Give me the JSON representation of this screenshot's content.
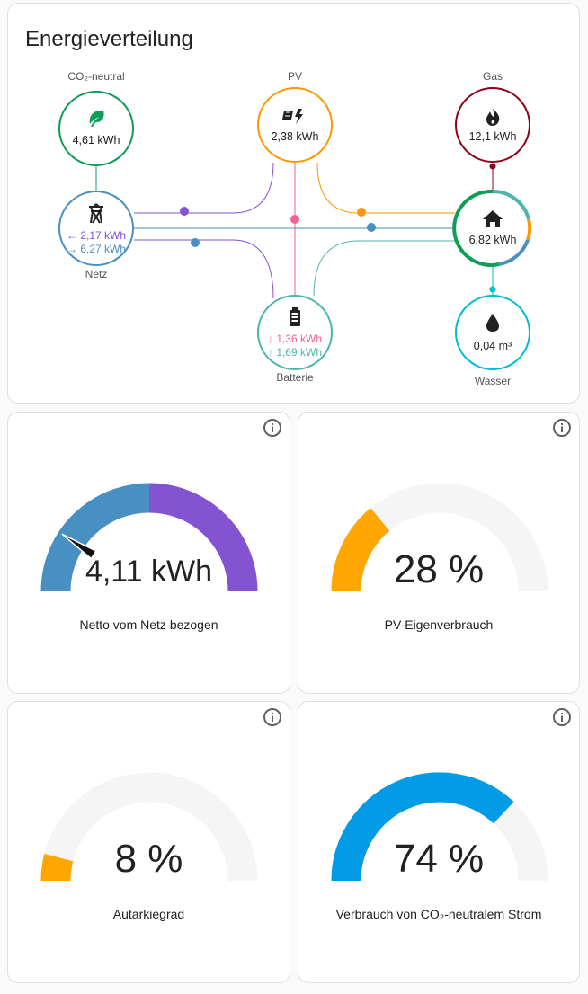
{
  "energy_distribution": {
    "title": "Energieverteilung",
    "nodes": {
      "co2": {
        "label": "CO₂-neutral",
        "value": "4,61 kWh",
        "icon": "leaf-icon",
        "color": "#0f9d58"
      },
      "pv": {
        "label": "PV",
        "value": "2,38 kWh",
        "icon": "solar-panel-icon",
        "color": "#ff9800"
      },
      "gas": {
        "label": "Gas",
        "value": "12,1 kWh",
        "icon": "fire-icon",
        "color": "#8e021b"
      },
      "grid": {
        "label": "Netz",
        "value_in": "← 2,17 kWh",
        "value_out": "→ 6,27 kWh",
        "icon": "transmission-tower-icon",
        "color": "#488fc2"
      },
      "home": {
        "value": "6,82 kWh",
        "icon": "home-icon",
        "color": "#0f9d58"
      },
      "battery": {
        "label": "Batterie",
        "value_in": "↓ 1,36 kWh",
        "value_out": "↑ 1,69 kWh",
        "icon": "battery-icon",
        "color": "#4db6ac"
      },
      "water": {
        "label": "Wasser",
        "value": "0,04 m³",
        "icon": "water-drop-icon",
        "color": "#00bcd4"
      }
    },
    "colors": {
      "grid_in": "#488fc2",
      "grid_out": "#8353d1",
      "solar": "#ff9800",
      "battery_in": "#f06292",
      "battery_out": "#4db6ac",
      "co2": "#0f9d58",
      "gas": "#8e021b",
      "water": "#00bcd4"
    }
  },
  "gauges": [
    {
      "value": "4,11 kWh",
      "label": "Netto vom Netz bezogen",
      "fraction": 0.37,
      "type": "net"
    },
    {
      "value": "28 %",
      "label": "PV-Eigenverbrauch",
      "fraction": 0.28,
      "color": "#ffa600",
      "type": "plain"
    },
    {
      "value": "8 %",
      "label": "Autarkiegrad",
      "fraction": 0.08,
      "color": "#ffa600",
      "type": "plain"
    },
    {
      "value": "74 %",
      "label": "Verbrauch von CO₂-neutralem Strom",
      "fraction": 0.74,
      "color": "#039be5",
      "type": "plain"
    }
  ]
}
